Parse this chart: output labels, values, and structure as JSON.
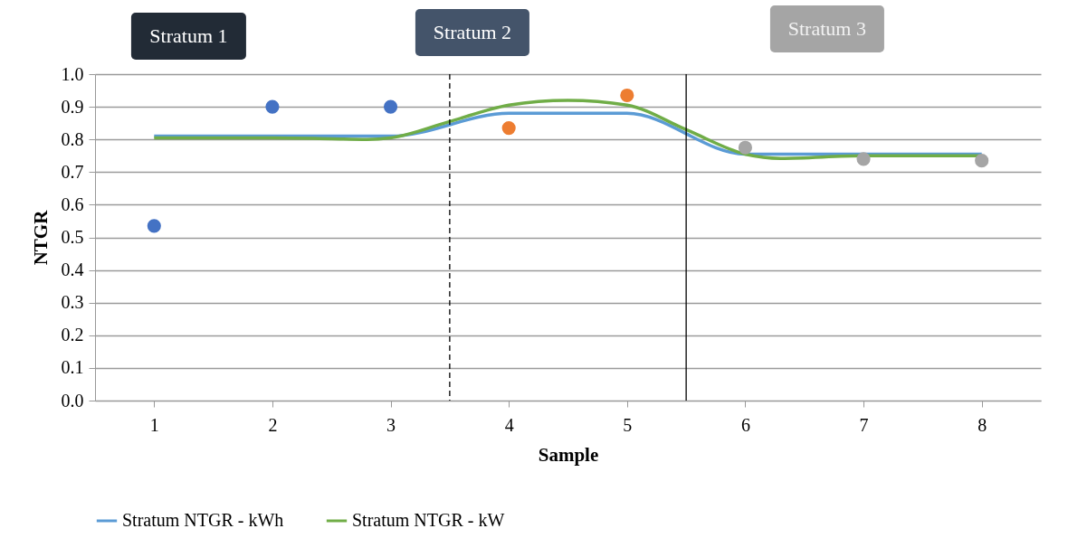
{
  "chart_data": {
    "type": "line",
    "xlabel": "Sample",
    "ylabel": "NTGR",
    "annotations": [
      "Stratum 1",
      "Stratum 2",
      "Stratum 3"
    ],
    "x": [
      1,
      2,
      3,
      4,
      5,
      6,
      7,
      8
    ],
    "xlim": [
      0.5,
      8.5
    ],
    "xticks": [
      1,
      2,
      3,
      4,
      5,
      6,
      7,
      8
    ],
    "ylim": [
      0,
      1
    ],
    "yticks": [
      {
        "value": 0,
        "label": "0.0"
      },
      0.1,
      0.2,
      0.3,
      0.4,
      0.5,
      0.6,
      0.7,
      0.8,
      0.9,
      {
        "value": 1,
        "label": "1.0"
      }
    ],
    "grid": "y",
    "legend": "bottom",
    "series": [
      {
        "name": "Stratum NTGR - kWh",
        "color": "#5b9bd5",
        "values": [
          0.81,
          0.81,
          0.81,
          0.88,
          0.88,
          0.755,
          0.755,
          0.755
        ]
      },
      {
        "name": "Stratum NTGR - kW",
        "color": "#70ad47",
        "x": [
          1,
          2,
          2.5,
          2.8,
          3,
          3.5,
          4,
          4.5,
          5,
          5.5,
          6,
          6.3,
          7,
          8
        ],
        "values": [
          0.805,
          0.805,
          0.802,
          0.8,
          0.805,
          0.855,
          0.905,
          0.92,
          0.905,
          0.83,
          0.755,
          0.742,
          0.75,
          0.75
        ]
      },
      {
        "type": "scatter",
        "color": "#4472c4",
        "x": [
          1,
          2,
          3
        ],
        "values": [
          0.535,
          0.9,
          0.9
        ]
      },
      {
        "type": "scatter",
        "color": "#ed7d31",
        "x": [
          4,
          5
        ],
        "values": [
          0.835,
          0.935
        ]
      },
      {
        "type": "scatter",
        "color": "#a5a5a5",
        "x": [
          6,
          7,
          8
        ],
        "values": [
          0.775,
          0.74,
          0.735
        ]
      }
    ],
    "ref_lines": [
      {
        "axis": "x",
        "value": 3.5,
        "line_style": "dashed",
        "color": "#000000"
      },
      {
        "axis": "x",
        "value": 5.5,
        "color": "#000000"
      }
    ]
  }
}
